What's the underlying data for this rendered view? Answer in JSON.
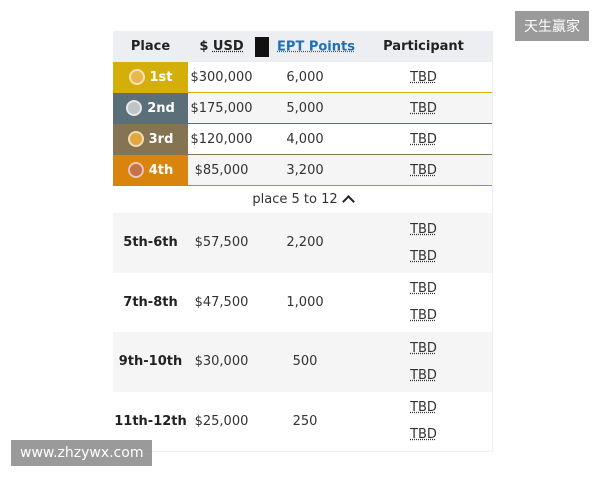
{
  "header": {
    "place": "Place",
    "usd_prefix": "$ ",
    "usd": "USD",
    "ept": "EPT Points",
    "participant": "Participant"
  },
  "top": [
    {
      "place": "1st",
      "usd": "$300,000",
      "ept": "6,000",
      "participant": "TBD",
      "color": "#d4af0a",
      "medal": "#e8b84a"
    },
    {
      "place": "2nd",
      "usd": "$175,000",
      "ept": "5,000",
      "participant": "TBD",
      "color": "#5a6f78",
      "medal": "#c0c4c8"
    },
    {
      "place": "3rd",
      "usd": "$120,000",
      "ept": "4,000",
      "participant": "TBD",
      "color": "#857452",
      "medal": "#e0a640"
    },
    {
      "place": "4th",
      "usd": "$85,000",
      "ept": "3,200",
      "participant": "TBD",
      "color": "#d9850d",
      "medal": "#c8704a"
    }
  ],
  "toggle": "place 5 to 12",
  "groups": [
    {
      "place": "5th-6th",
      "usd": "$57,500",
      "ept": "2,200",
      "participants": [
        "TBD",
        "TBD"
      ]
    },
    {
      "place": "7th-8th",
      "usd": "$47,500",
      "ept": "1,000",
      "participants": [
        "TBD",
        "TBD"
      ]
    },
    {
      "place": "9th-10th",
      "usd": "$30,000",
      "ept": "500",
      "participants": [
        "TBD",
        "TBD"
      ]
    },
    {
      "place": "11th-12th",
      "usd": "$25,000",
      "ept": "250",
      "participants": [
        "TBD",
        "TBD"
      ]
    }
  ],
  "watermarks": {
    "top": "天生赢家",
    "bottom": "www.zhzywx.com"
  }
}
